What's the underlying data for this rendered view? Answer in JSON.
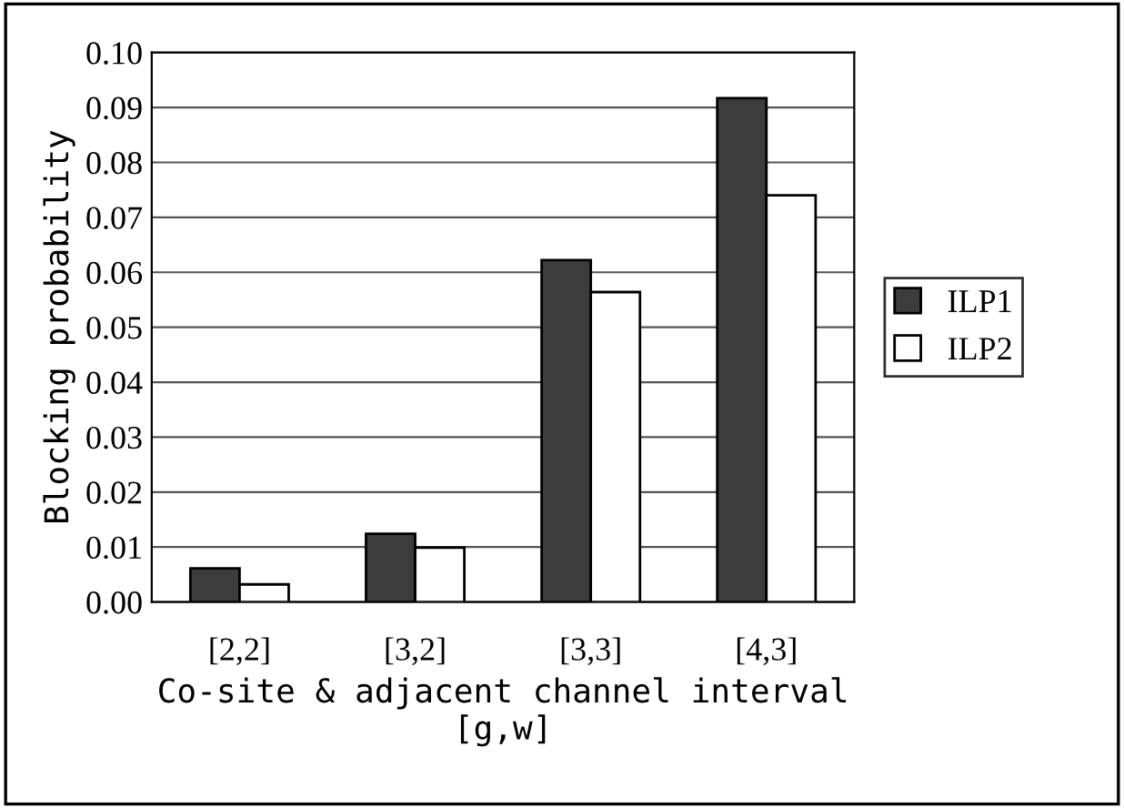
{
  "chart_data": {
    "type": "bar",
    "xlabel": "Co-site & adjacent channel interval\n[g,w]",
    "ylabel": "Blocking probability",
    "categories": [
      "[2,2]",
      "[3,2]",
      "[3,3]",
      "[4,3]"
    ],
    "series": [
      {
        "name": "ILP1",
        "color": "#3c3c3c",
        "values": [
          0.0061,
          0.0124,
          0.0622,
          0.0917
        ]
      },
      {
        "name": "ILP2",
        "color": "#ffffff",
        "values": [
          0.0032,
          0.0099,
          0.0564,
          0.074
        ]
      }
    ],
    "ylim": [
      0,
      0.1
    ],
    "yticks": [
      {
        "value": 0,
        "label": "0.00"
      },
      {
        "value": 0.01,
        "label": "0.01"
      },
      {
        "value": 0.02,
        "label": "0.02"
      },
      {
        "value": 0.03,
        "label": "0.03"
      },
      {
        "value": 0.04,
        "label": "0.04"
      },
      {
        "value": 0.05,
        "label": "0.05"
      },
      {
        "value": 0.06,
        "label": "0.06"
      },
      {
        "value": 0.07,
        "label": "0.07"
      },
      {
        "value": 0.08,
        "label": "0.08"
      },
      {
        "value": 0.09,
        "label": "0.09"
      },
      {
        "value": 0.1,
        "label": "0.10"
      }
    ],
    "grid": "y",
    "legend": "right"
  }
}
